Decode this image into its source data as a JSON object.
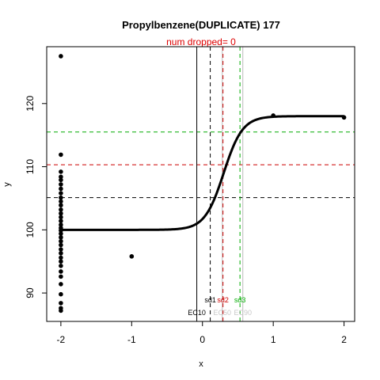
{
  "chart_data": {
    "type": "scatter",
    "title": "Propylbenzene(DUPLICATE) 177",
    "subtitle": "num dropped= 0",
    "xlabel": "x",
    "ylabel": "y",
    "xlim": [
      -2.2,
      2.15
    ],
    "ylim": [
      85.5,
      129
    ],
    "x_ticks": [
      -2,
      -1,
      0,
      1,
      2
    ],
    "y_ticks": [
      90,
      100,
      110,
      120
    ],
    "grid": false,
    "colors": {
      "points": "#000000",
      "curve": "#000000",
      "sd1": "#000000",
      "sd2": "#cc0000",
      "sd3": "#00aa00",
      "ec_lines": "#bbbbbb",
      "subtitle": "#dd0000"
    },
    "points": [
      [
        -2,
        127.5
      ],
      [
        -2,
        111.9
      ],
      [
        -2,
        109.2
      ],
      [
        -2,
        108.4
      ],
      [
        -2,
        107.9
      ],
      [
        -2,
        107.2
      ],
      [
        -2,
        106.5
      ],
      [
        -2,
        105.8
      ],
      [
        -2,
        105.1
      ],
      [
        -2,
        104.5
      ],
      [
        -2,
        103.9
      ],
      [
        -2,
        103.2
      ],
      [
        -2,
        102.6
      ],
      [
        -2,
        102.0
      ],
      [
        -2,
        101.4
      ],
      [
        -2,
        100.8
      ],
      [
        -2,
        100.3
      ],
      [
        -2,
        99.9
      ],
      [
        -2,
        99.4
      ],
      [
        -2,
        98.8
      ],
      [
        -2,
        98.2
      ],
      [
        -2,
        97.6
      ],
      [
        -2,
        96.9
      ],
      [
        -2,
        96.3
      ],
      [
        -2,
        95.6
      ],
      [
        -2,
        95.0
      ],
      [
        -2,
        94.3
      ],
      [
        -2,
        93.4
      ],
      [
        -2,
        92.6
      ],
      [
        -2,
        91.4
      ],
      [
        -2,
        89.8
      ],
      [
        -2,
        88.4
      ],
      [
        -2,
        87.6
      ],
      [
        -2,
        87.2
      ],
      [
        -1,
        95.8
      ],
      [
        1,
        118.1
      ],
      [
        2,
        117.8
      ]
    ],
    "curve": {
      "bottom": 100.0,
      "top": 118.0,
      "midpoint": 0.3,
      "slope": 7.5
    },
    "hlines": [
      {
        "y": 105.1,
        "color": "#000000",
        "style": "dashed"
      },
      {
        "y": 110.3,
        "color": "#cc0000",
        "style": "dashed"
      },
      {
        "y": 115.5,
        "color": "#00aa00",
        "style": "dashed"
      }
    ],
    "vlines": [
      {
        "x": -0.08,
        "color": "#000000",
        "style": "solid",
        "label": "EC10"
      },
      {
        "x": 0.28,
        "color": "#bbbbbb",
        "style": "solid",
        "label": "EC50"
      },
      {
        "x": 0.57,
        "color": "#bbbbbb",
        "style": "solid",
        "label": "EC90"
      },
      {
        "x": 0.11,
        "color": "#000000",
        "style": "dashed",
        "label": "sd1"
      },
      {
        "x": 0.29,
        "color": "#cc0000",
        "style": "dashed",
        "label": "sd2"
      },
      {
        "x": 0.53,
        "color": "#00aa00",
        "style": "dashed",
        "label": "sd3"
      }
    ]
  }
}
